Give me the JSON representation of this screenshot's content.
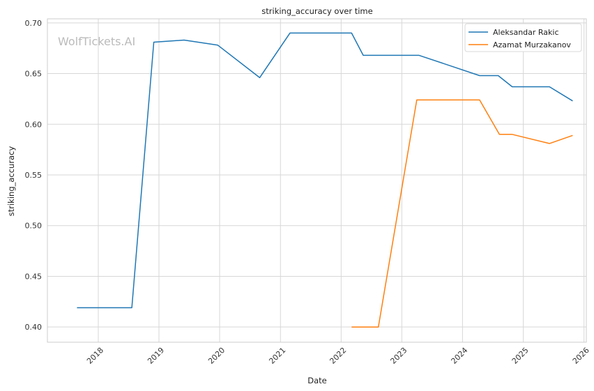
{
  "chart_data": {
    "type": "line",
    "title": "striking_accuracy over time",
    "xlabel": "Date",
    "ylabel": "striking_accuracy",
    "watermark": "WolfTickets.AI",
    "x_ticks": [
      "2018",
      "2019",
      "2020",
      "2021",
      "2022",
      "2023",
      "2024",
      "2025",
      "2026"
    ],
    "y_ticks": [
      "0.40",
      "0.45",
      "0.50",
      "0.55",
      "0.60",
      "0.65",
      "0.70"
    ],
    "xlim": [
      "2017-03-01",
      "2026-01-15"
    ],
    "ylim": [
      0.385,
      0.704
    ],
    "grid": true,
    "legend_position": "top-right",
    "series": [
      {
        "name": "Aleksandar Rakic",
        "color": "#1f77b4",
        "points": [
          [
            "2017-08-26",
            0.419
          ],
          [
            "2018-07-22",
            0.419
          ],
          [
            "2018-12-01",
            0.681
          ],
          [
            "2019-06-01",
            0.683
          ],
          [
            "2019-12-21",
            0.678
          ],
          [
            "2020-08-29",
            0.646
          ],
          [
            "2021-02-27",
            0.69
          ],
          [
            "2022-03-05",
            0.69
          ],
          [
            "2022-05-14",
            0.668
          ],
          [
            "2023-04-15",
            0.668
          ],
          [
            "2024-04-13",
            0.648
          ],
          [
            "2024-08-03",
            0.648
          ],
          [
            "2024-10-26",
            0.637
          ],
          [
            "2025-06-07",
            0.637
          ],
          [
            "2025-10-25",
            0.623
          ]
        ]
      },
      {
        "name": "Azamat Murzakanov",
        "color": "#ff7f0e",
        "points": [
          [
            "2022-03-05",
            0.4
          ],
          [
            "2022-08-13",
            0.4
          ],
          [
            "2023-04-01",
            0.624
          ],
          [
            "2024-04-13",
            0.624
          ],
          [
            "2024-08-10",
            0.59
          ],
          [
            "2024-10-26",
            0.59
          ],
          [
            "2025-06-07",
            0.581
          ],
          [
            "2025-10-25",
            0.589
          ]
        ]
      }
    ]
  }
}
